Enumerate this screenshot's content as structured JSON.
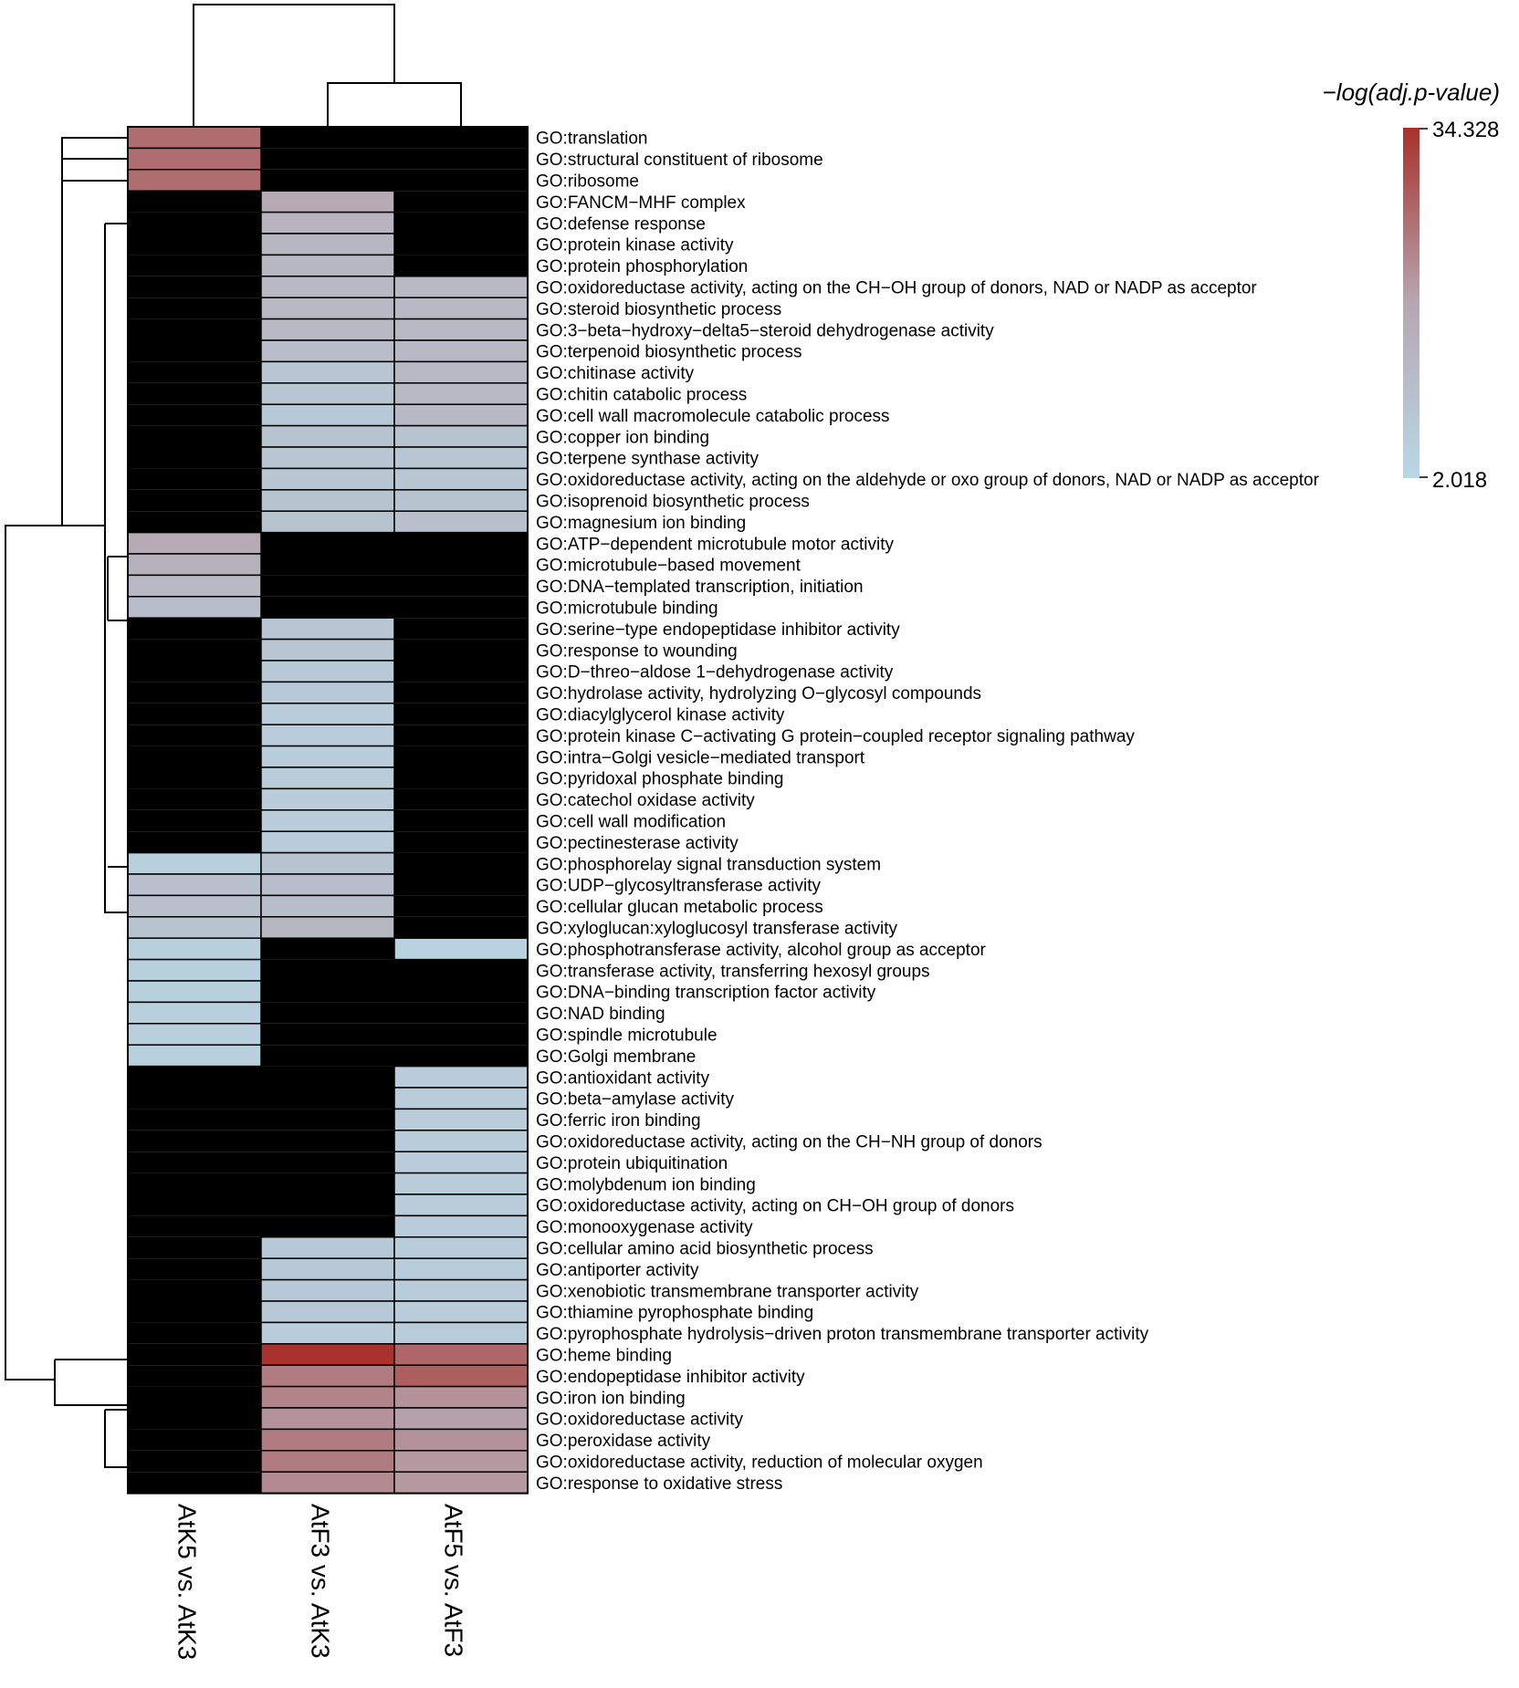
{
  "chart_data": {
    "type": "heatmap",
    "legend": {
      "title": "−log(adj.p-value)",
      "max_label": "34.328",
      "min_label": "2.018",
      "min": 2.018,
      "max": 34.328,
      "colors": {
        "low": "#b8d8e6",
        "mid": "#b6a7b1",
        "high": "#a9302b",
        "missing": "#000000"
      }
    },
    "columns": [
      "AtK5 vs. AtK3",
      "AtF3 vs. AtK3",
      "AtF5 vs. AtF3"
    ],
    "rows": [
      "GO:translation",
      "GO:structural constituent of ribosome",
      "GO:ribosome",
      "GO:FANCM−MHF complex",
      "GO:defense response",
      "GO:protein kinase activity",
      "GO:protein phosphorylation",
      "GO:oxidoreductase activity, acting on the CH−OH group of donors, NAD or NADP as acceptor",
      "GO:steroid biosynthetic process",
      "GO:3−beta−hydroxy−delta5−steroid dehydrogenase activity",
      "GO:terpenoid biosynthetic process",
      "GO:chitinase activity",
      "GO:chitin catabolic process",
      "GO:cell wall macromolecule catabolic process",
      "GO:copper ion binding",
      "GO:terpene synthase activity",
      "GO:oxidoreductase activity, acting on the aldehyde or oxo group of donors, NAD or NADP as acceptor",
      "GO:isoprenoid biosynthetic process",
      "GO:magnesium ion binding",
      "GO:ATP−dependent microtubule motor activity",
      "GO:microtubule−based movement",
      "GO:DNA−templated transcription, initiation",
      "GO:microtubule binding",
      "GO:serine−type endopeptidase inhibitor activity",
      "GO:response to wounding",
      "GO:D−threo−aldose 1−dehydrogenase activity",
      "GO:hydrolase activity, hydrolyzing O−glycosyl compounds",
      "GO:diacylglycerol kinase activity",
      "GO:protein kinase C−activating G protein−coupled receptor signaling pathway",
      "GO:intra−Golgi vesicle−mediated transport",
      "GO:pyridoxal phosphate binding",
      "GO:catechol oxidase activity",
      "GO:cell wall modification",
      "GO:pectinesterase activity",
      "GO:phosphorelay signal transduction system",
      "GO:UDP−glycosyltransferase activity",
      "GO:cellular glucan metabolic process",
      "GO:xyloglucan:xyloglucosyl transferase activity",
      "GO:phosphotransferase activity, alcohol group as acceptor",
      "GO:transferase activity, transferring hexosyl groups",
      "GO:DNA−binding transcription factor activity",
      "GO:NAD binding",
      "GO:spindle microtubule",
      "GO:Golgi membrane",
      "GO:antioxidant activity",
      "GO:beta−amylase activity",
      "GO:ferric iron binding",
      "GO:oxidoreductase activity, acting on the CH−NH group of donors",
      "GO:protein ubiquitination",
      "GO:molybdenum ion binding",
      "GO:oxidoreductase activity, acting on CH−OH group of donors",
      "GO:monooxygenase activity",
      "GO:cellular amino acid biosynthetic process",
      "GO:antiporter activity",
      "GO:xenobiotic transmembrane transporter activity",
      "GO:thiamine pyrophosphate binding",
      "GO:pyrophosphate hydrolysis−driven proton transmembrane transporter activity",
      "GO:heme binding",
      "GO:endopeptidase inhibitor activity",
      "GO:iron ion binding",
      "GO:oxidoreductase activity",
      "GO:peroxidase activity",
      "GO:oxidoreductase activity, reduction of molecular oxygen",
      "GO:response to oxidative stress"
    ],
    "values": [
      [
        26,
        null,
        null
      ],
      [
        26,
        null,
        null
      ],
      [
        26,
        null,
        null
      ],
      [
        null,
        17,
        null
      ],
      [
        null,
        14,
        null
      ],
      [
        null,
        13,
        null
      ],
      [
        null,
        13,
        null
      ],
      [
        null,
        12,
        12
      ],
      [
        null,
        12,
        12
      ],
      [
        null,
        12,
        12
      ],
      [
        null,
        11,
        12
      ],
      [
        null,
        8,
        12
      ],
      [
        null,
        8,
        12
      ],
      [
        null,
        7,
        12
      ],
      [
        null,
        9,
        9
      ],
      [
        null,
        8,
        8
      ],
      [
        null,
        8,
        8
      ],
      [
        null,
        9,
        9
      ],
      [
        null,
        9,
        10
      ],
      [
        17,
        null,
        null
      ],
      [
        15,
        null,
        null
      ],
      [
        12,
        null,
        null
      ],
      [
        11,
        null,
        null
      ],
      [
        null,
        8,
        null
      ],
      [
        null,
        8,
        null
      ],
      [
        null,
        7,
        null
      ],
      [
        null,
        7,
        null
      ],
      [
        null,
        6,
        null
      ],
      [
        null,
        6,
        null
      ],
      [
        null,
        6,
        null
      ],
      [
        null,
        6,
        null
      ],
      [
        null,
        6,
        null
      ],
      [
        null,
        6,
        null
      ],
      [
        null,
        6,
        null
      ],
      [
        5,
        9,
        null
      ],
      [
        10,
        11,
        null
      ],
      [
        10,
        11,
        null
      ],
      [
        9,
        13,
        null
      ],
      [
        5,
        null,
        4
      ],
      [
        5,
        null,
        null
      ],
      [
        5,
        null,
        null
      ],
      [
        5,
        null,
        null
      ],
      [
        5,
        null,
        null
      ],
      [
        5,
        null,
        null
      ],
      [
        null,
        null,
        6
      ],
      [
        null,
        null,
        6
      ],
      [
        null,
        null,
        6
      ],
      [
        null,
        null,
        6
      ],
      [
        null,
        null,
        6
      ],
      [
        null,
        null,
        6
      ],
      [
        null,
        null,
        6
      ],
      [
        null,
        null,
        6
      ],
      [
        null,
        7,
        6
      ],
      [
        null,
        7,
        6
      ],
      [
        null,
        7,
        6
      ],
      [
        null,
        7,
        6
      ],
      [
        null,
        6,
        6
      ],
      [
        null,
        34,
        27
      ],
      [
        null,
        24,
        28
      ],
      [
        null,
        23,
        21
      ],
      [
        null,
        21,
        19
      ],
      [
        null,
        24,
        21
      ],
      [
        null,
        24,
        20
      ],
      [
        null,
        22,
        20
      ]
    ]
  }
}
